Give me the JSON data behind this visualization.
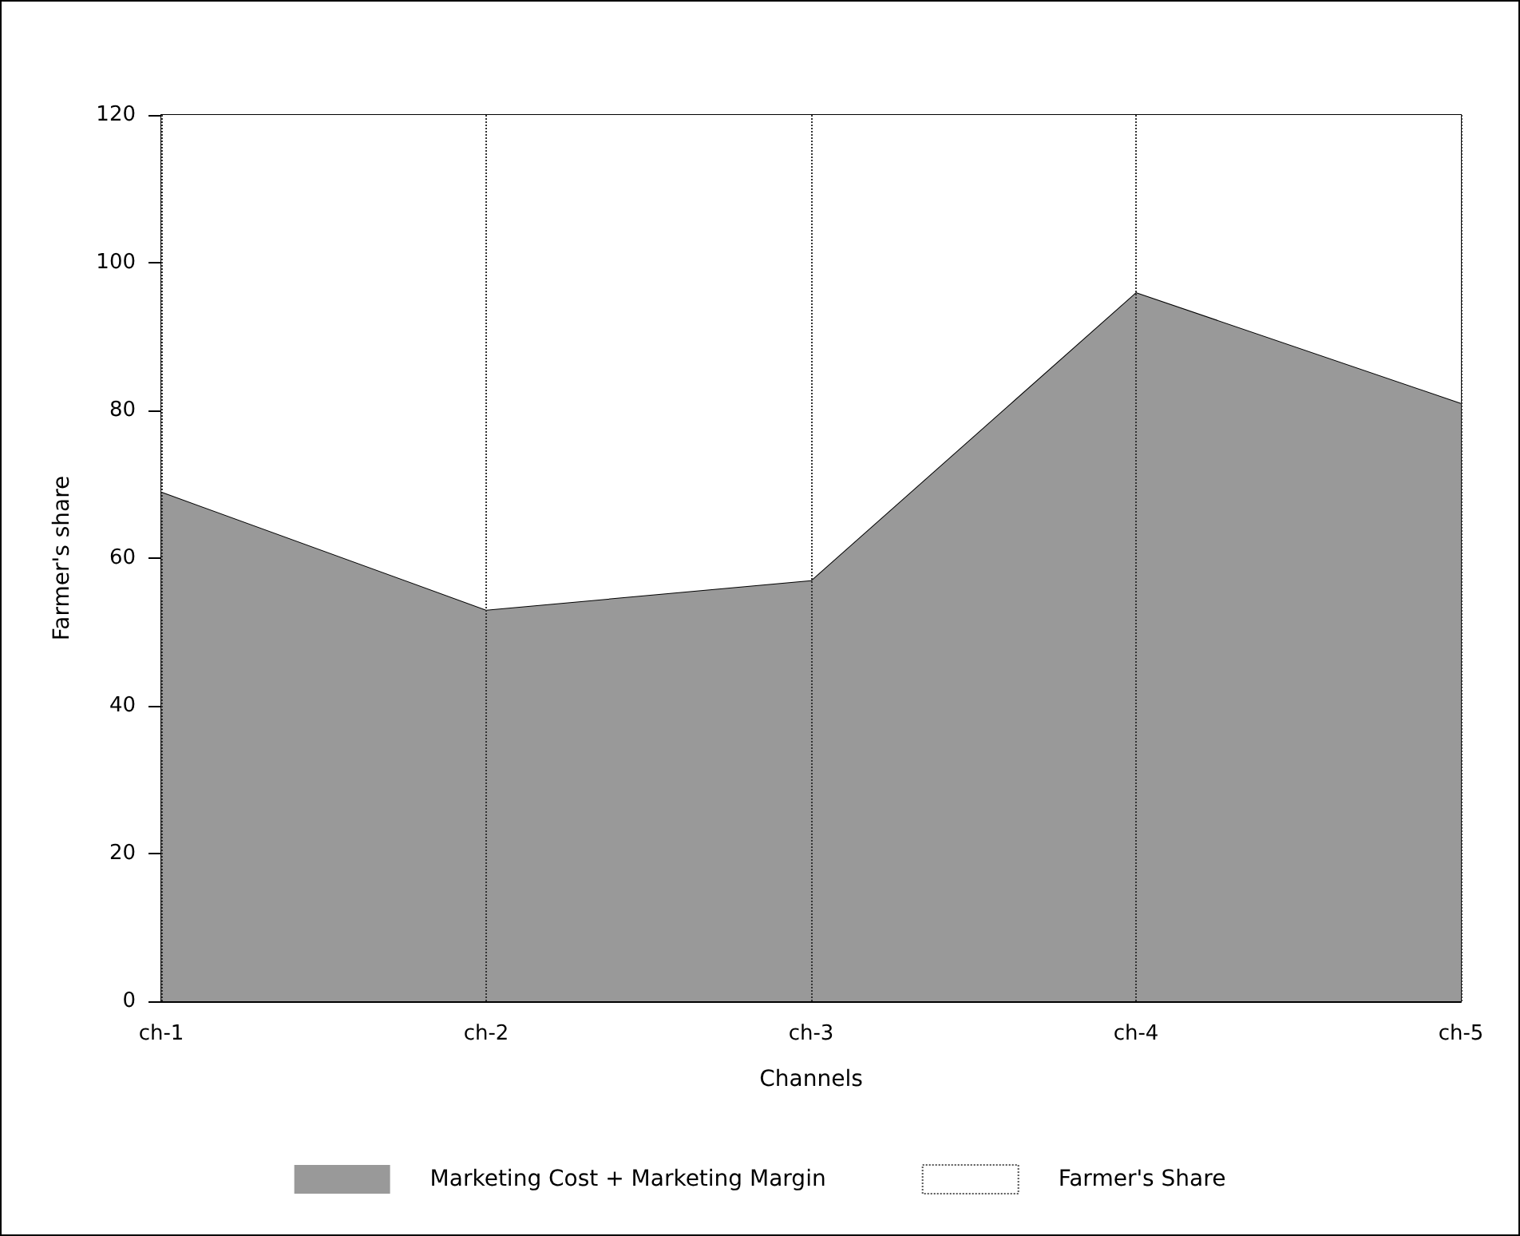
{
  "chart_data": {
    "type": "area",
    "xlabel": "Channels",
    "ylabel": "Farmer's share",
    "categories": [
      "ch-1",
      "ch-2",
      "ch-3",
      "ch-4",
      "ch-5"
    ],
    "series": [
      {
        "name": "Marketing Cost + Marketing Margin",
        "color": "#999999",
        "values": [
          69,
          53,
          57,
          96,
          81
        ]
      },
      {
        "name": "Farmer's Share",
        "color": "#ffffff",
        "values": [
          51,
          67,
          63,
          24,
          39
        ]
      }
    ],
    "stacked": true,
    "ylim": [
      0,
      120
    ],
    "yticks": [
      0,
      20,
      40,
      60,
      80,
      100,
      120
    ],
    "grid": "x",
    "legend": "bottom",
    "marker": "none"
  }
}
